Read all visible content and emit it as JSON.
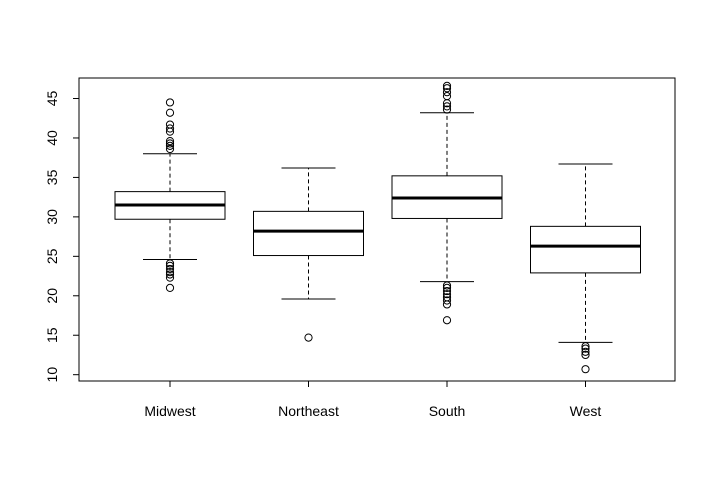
{
  "chart_data": {
    "type": "boxplot",
    "title": "",
    "xlabel": "",
    "ylabel": "",
    "ylim": [
      9.2,
      47.6
    ],
    "y_ticks": [
      10,
      15,
      20,
      25,
      30,
      35,
      40,
      45
    ],
    "y_tick_labels": [
      "10",
      "15",
      "20",
      "25",
      "30",
      "35",
      "40",
      "45"
    ],
    "grid": false,
    "categories": [
      "Midwest",
      "Northeast",
      "South",
      "West"
    ],
    "boxes": [
      {
        "category": "Midwest",
        "whisker_low": 24.6,
        "q1": 29.7,
        "median": 31.5,
        "q3": 33.2,
        "whisker_high": 38.0,
        "outliers": [
          21.0,
          22.3,
          22.7,
          23.0,
          23.4,
          23.8,
          24.1,
          38.6,
          39.0,
          39.3,
          39.6,
          40.8,
          41.2,
          41.7,
          43.2,
          44.5
        ]
      },
      {
        "category": "Northeast",
        "whisker_low": 19.6,
        "q1": 25.1,
        "median": 28.2,
        "q3": 30.7,
        "whisker_high": 36.2,
        "outliers": [
          14.7
        ]
      },
      {
        "category": "South",
        "whisker_low": 21.8,
        "q1": 29.8,
        "median": 32.4,
        "q3": 35.2,
        "whisker_high": 43.2,
        "outliers": [
          16.9,
          18.9,
          19.4,
          19.8,
          20.2,
          20.6,
          21.0,
          21.3,
          43.6,
          44.0,
          44.4,
          45.3,
          45.8,
          46.3,
          46.6
        ]
      },
      {
        "category": "West",
        "whisker_low": 14.1,
        "q1": 22.9,
        "median": 26.3,
        "q3": 28.8,
        "whisker_high": 36.7,
        "outliers": [
          10.7,
          12.5,
          12.9,
          13.3,
          13.6
        ]
      }
    ]
  }
}
